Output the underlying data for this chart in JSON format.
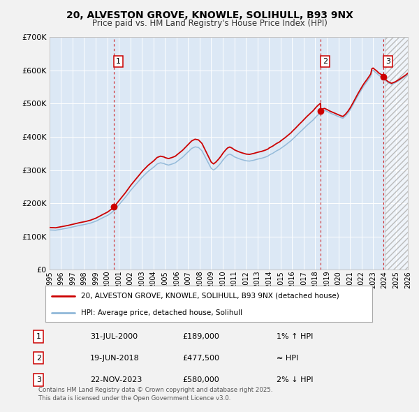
{
  "title": "20, ALVESTON GROVE, KNOWLE, SOLIHULL, B93 9NX",
  "subtitle": "Price paid vs. HM Land Registry's House Price Index (HPI)",
  "bg_color": "#f2f2f2",
  "plot_bg_color": "#dce8f5",
  "hpi_color": "#90b8d8",
  "price_color": "#cc0000",
  "ylabel_values": [
    "£0",
    "£100K",
    "£200K",
    "£300K",
    "£400K",
    "£500K",
    "£600K",
    "£700K"
  ],
  "ylabel_numeric": [
    0,
    100000,
    200000,
    300000,
    400000,
    500000,
    600000,
    700000
  ],
  "xmin": 1995.0,
  "xmax": 2026.0,
  "ymin": 0,
  "ymax": 700000,
  "transactions": [
    {
      "num": 1,
      "date_year": 2000.578,
      "price": 189000,
      "label": "1",
      "date_str": "31-JUL-2000",
      "price_str": "£189,000",
      "hpi_str": "1% ↑ HPI"
    },
    {
      "num": 2,
      "date_year": 2018.465,
      "price": 477500,
      "label": "2",
      "date_str": "19-JUN-2018",
      "price_str": "£477,500",
      "hpi_str": "≈ HPI"
    },
    {
      "num": 3,
      "date_year": 2023.895,
      "price": 580000,
      "label": "3",
      "date_str": "22-NOV-2023",
      "price_str": "£580,000",
      "hpi_str": "2% ↓ HPI"
    }
  ],
  "legend_line1": "20, ALVESTON GROVE, KNOWLE, SOLIHULL, B93 9NX (detached house)",
  "legend_line2": "HPI: Average price, detached house, Solihull",
  "footer1": "Contains HM Land Registry data © Crown copyright and database right 2025.",
  "footer2": "This data is licensed under the Open Government Licence v3.0.",
  "hatched_region_start": 2024.0,
  "hatched_region_end": 2026.5
}
